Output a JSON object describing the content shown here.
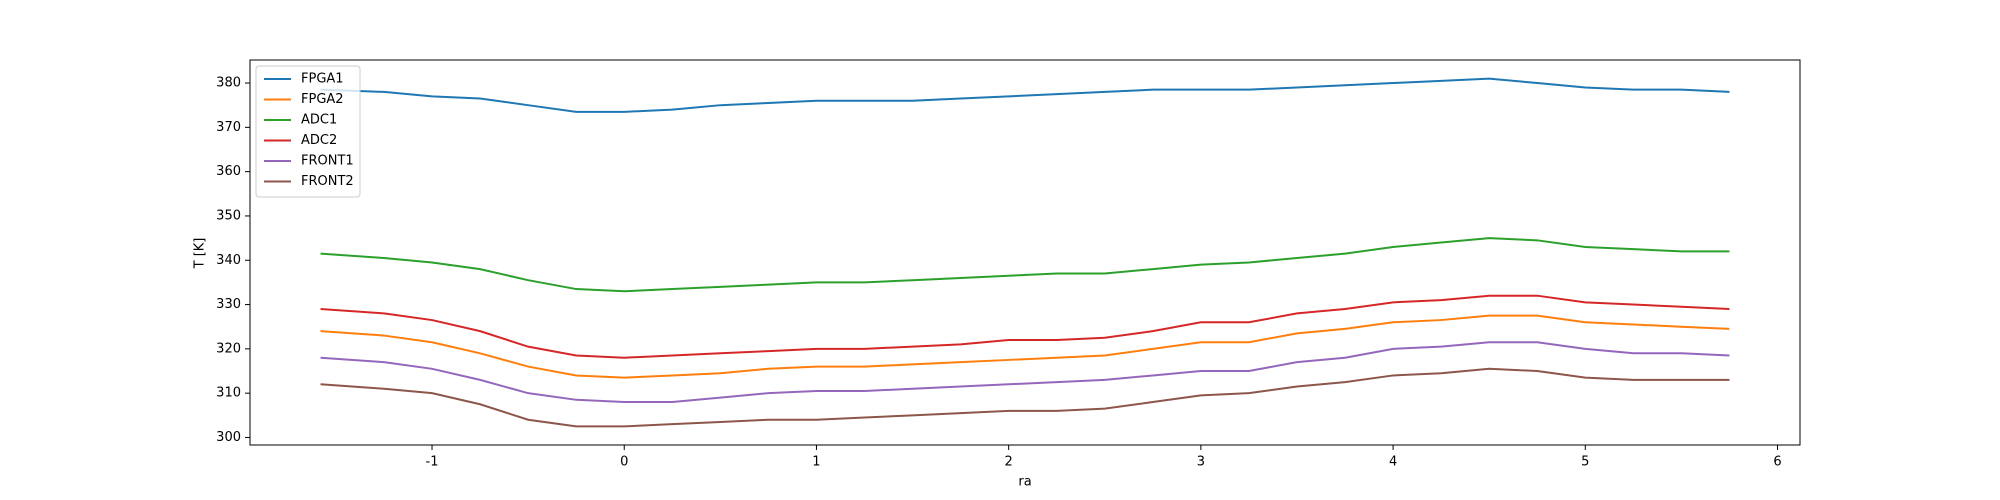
{
  "chart_data": {
    "type": "line",
    "xlabel": "ra",
    "ylabel": "T [K]",
    "xlim": [
      -1.947,
      6.117
    ],
    "ylim": [
      298.3,
      385.2
    ],
    "xticks": [
      -1,
      0,
      1,
      2,
      3,
      4,
      5,
      6
    ],
    "yticks": [
      300,
      310,
      320,
      330,
      340,
      350,
      360,
      370,
      380
    ],
    "legend": "upper-left",
    "x": [
      -1.58,
      -1.25,
      -1.0,
      -0.75,
      -0.5,
      -0.25,
      0,
      0.25,
      0.5,
      0.75,
      1,
      1.25,
      1.5,
      1.75,
      2,
      2.25,
      2.5,
      2.75,
      3,
      3.25,
      3.5,
      3.75,
      4,
      4.25,
      4.5,
      4.75,
      5,
      5.25,
      5.5,
      5.75
    ],
    "series": [
      {
        "name": "FPGA1",
        "color": "#1f77b4",
        "values": [
          378.5,
          378,
          377,
          376.5,
          375,
          373.5,
          373.5,
          374,
          375,
          375.5,
          376,
          376,
          376,
          376.5,
          377,
          377.5,
          378,
          378.5,
          378.5,
          378.5,
          379,
          379.5,
          380,
          380.5,
          381,
          380,
          379,
          378.5,
          378.5,
          378
        ]
      },
      {
        "name": "FPGA2",
        "color": "#ff7f0e",
        "values": [
          324,
          323,
          321.5,
          319,
          316,
          314,
          313.5,
          314,
          314.5,
          315.5,
          316,
          316,
          316.5,
          317,
          317.5,
          318,
          318.5,
          320,
          321.5,
          321.5,
          323.5,
          324.5,
          326,
          326.5,
          327.5,
          327.5,
          326,
          325.5,
          325,
          324.5
        ]
      },
      {
        "name": "ADC1",
        "color": "#2ca02c",
        "values": [
          341.5,
          340.5,
          339.5,
          338,
          335.5,
          333.5,
          333,
          333.5,
          334,
          334.5,
          335,
          335,
          335.5,
          336,
          336.5,
          337,
          337,
          338,
          339,
          339.5,
          340.5,
          341.5,
          343,
          344,
          345,
          344.5,
          343,
          342.5,
          342,
          342
        ]
      },
      {
        "name": "ADC2",
        "color": "#d62728",
        "values": [
          329,
          328,
          326.5,
          324,
          320.5,
          318.5,
          318,
          318.5,
          319,
          319.5,
          320,
          320,
          320.5,
          321,
          322,
          322,
          322.5,
          324,
          326,
          326,
          328,
          329,
          330.5,
          331,
          332,
          332,
          330.5,
          330,
          329.5,
          329
        ]
      },
      {
        "name": "FRONT1",
        "color": "#9467bd",
        "values": [
          318,
          317,
          315.5,
          313,
          310,
          308.5,
          308,
          308,
          309,
          310,
          310.5,
          310.5,
          311,
          311.5,
          312,
          312.5,
          313,
          314,
          315,
          315,
          317,
          318,
          320,
          320.5,
          321.5,
          321.5,
          320,
          319,
          319,
          318.5
        ]
      },
      {
        "name": "FRONT2",
        "color": "#8c564b",
        "values": [
          312,
          311,
          310,
          307.5,
          304,
          302.5,
          302.5,
          303,
          303.5,
          304,
          304,
          304.5,
          305,
          305.5,
          306,
          306,
          306.5,
          308,
          309.5,
          310,
          311.5,
          312.5,
          314,
          314.5,
          315.5,
          315,
          313.5,
          313,
          313,
          313
        ]
      }
    ]
  }
}
